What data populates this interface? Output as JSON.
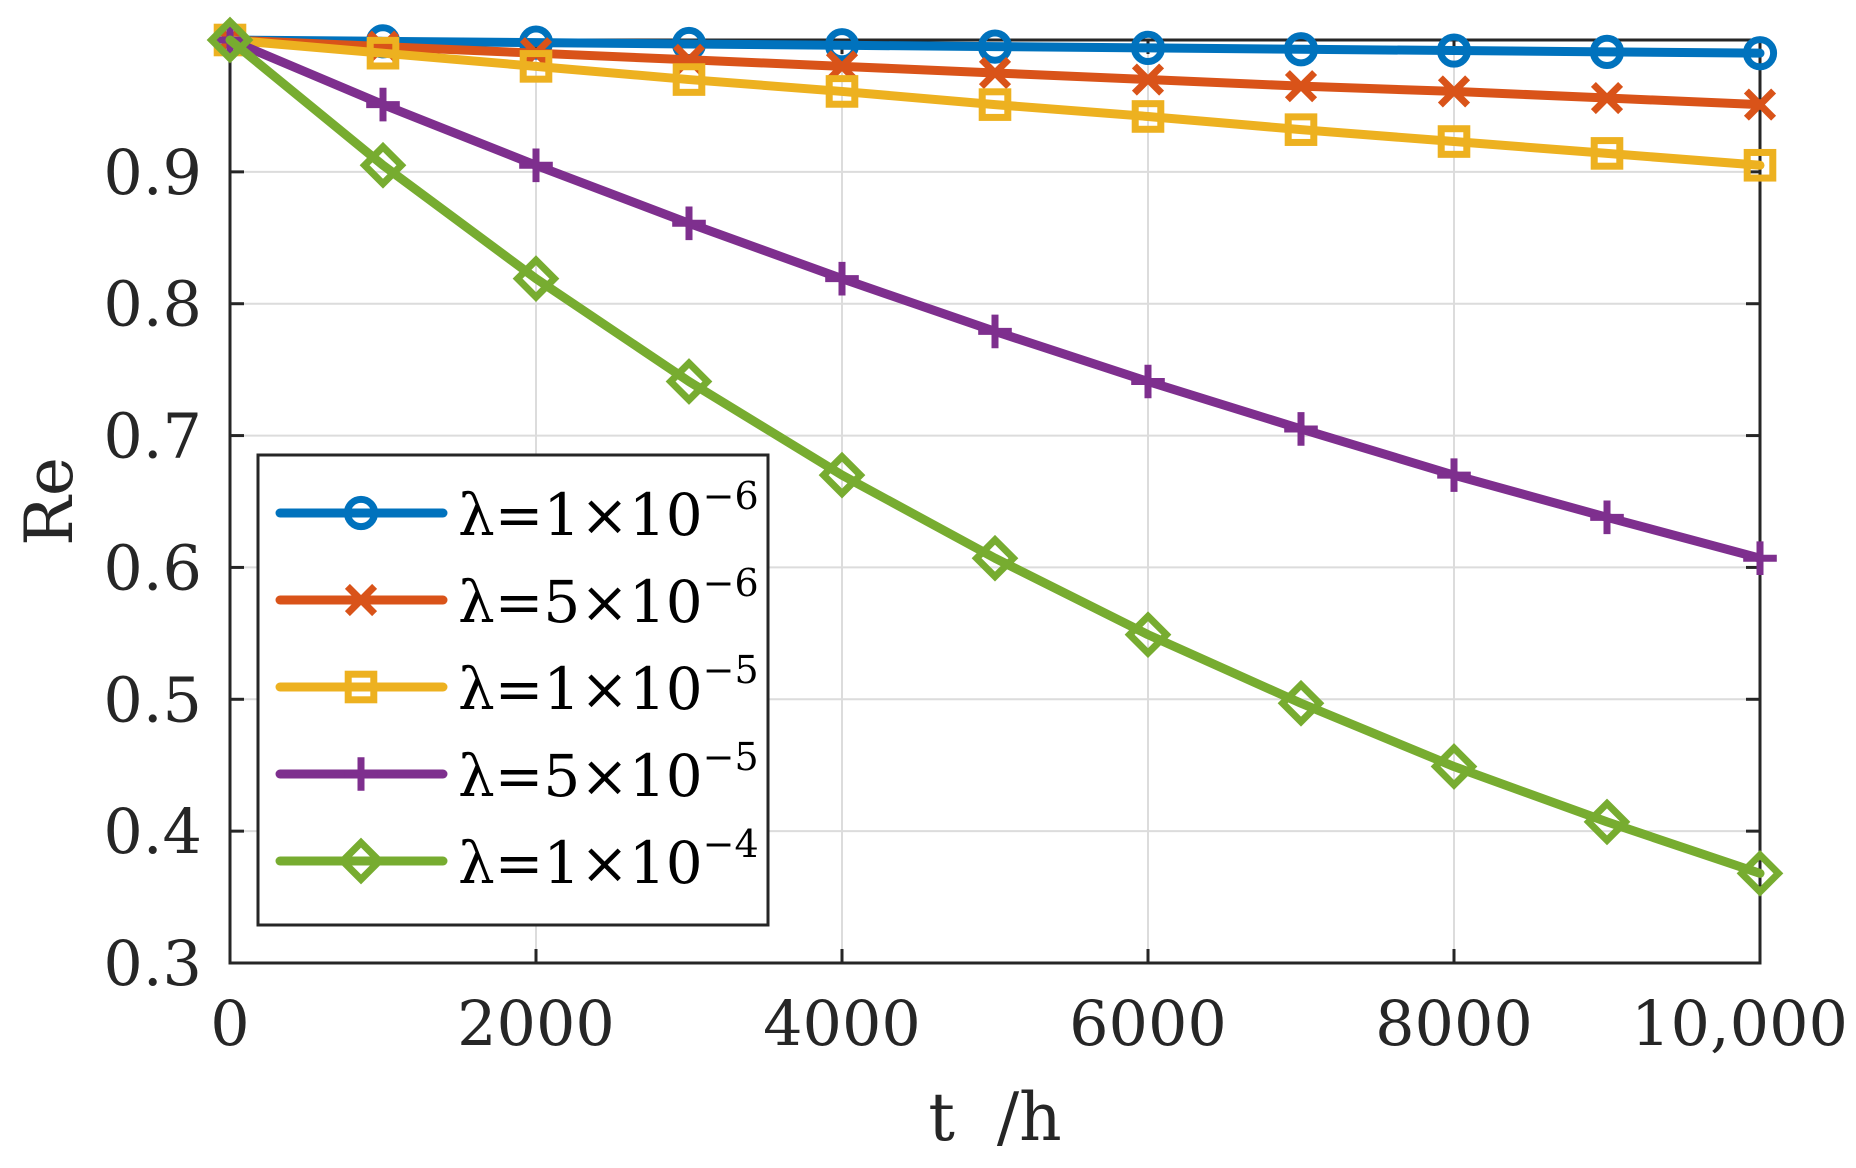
{
  "chart_data": {
    "type": "line",
    "title": "",
    "xlabel": "t  /h",
    "ylabel": "Re",
    "xlim": [
      0,
      10000
    ],
    "ylim": [
      0.3,
      1.0
    ],
    "grid": true,
    "legend_position": "bottom-left",
    "x_ticks": [
      0,
      2000,
      4000,
      6000,
      8000,
      10000
    ],
    "x_tick_labels": [
      "0",
      "2000",
      "4000",
      "6000",
      "8000",
      "10,000"
    ],
    "y_ticks": [
      0.3,
      0.4,
      0.5,
      0.6,
      0.7,
      0.8,
      0.9
    ],
    "y_tick_labels": [
      "0.3",
      "0.4",
      "0.5",
      "0.6",
      "0.7",
      "0.8",
      "0.9"
    ],
    "x": [
      0,
      1000,
      2000,
      3000,
      4000,
      5000,
      6000,
      7000,
      8000,
      9000,
      10000
    ],
    "series": [
      {
        "name": "λ=1×10⁻⁶",
        "label_base": "λ=1×10",
        "label_exp": "−6",
        "color": "#0072BD",
        "marker": "circle",
        "values": [
          1.0,
          0.999,
          0.998,
          0.997,
          0.996,
          0.995,
          0.994,
          0.993,
          0.992,
          0.991,
          0.99
        ]
      },
      {
        "name": "λ=5×10⁻⁶",
        "label_base": "λ=5×10",
        "label_exp": "−6",
        "color": "#D95319",
        "marker": "x",
        "values": [
          1.0,
          0.995,
          0.99,
          0.985,
          0.98,
          0.975,
          0.97,
          0.965,
          0.961,
          0.956,
          0.951
        ]
      },
      {
        "name": "λ=1×10⁻⁵",
        "label_base": "λ=1×10",
        "label_exp": "−5",
        "color": "#EDB120",
        "marker": "square",
        "values": [
          1.0,
          0.99,
          0.98,
          0.97,
          0.961,
          0.951,
          0.942,
          0.932,
          0.923,
          0.914,
          0.905
        ]
      },
      {
        "name": "λ=5×10⁻⁵",
        "label_base": "λ=5×10",
        "label_exp": "−5",
        "color": "#7E2F8E",
        "marker": "plus",
        "values": [
          1.0,
          0.951,
          0.905,
          0.861,
          0.819,
          0.779,
          0.741,
          0.705,
          0.67,
          0.638,
          0.607
        ]
      },
      {
        "name": "λ=1×10⁻⁴",
        "label_base": "λ=1×10",
        "label_exp": "−4",
        "color": "#77AC30",
        "marker": "diamond",
        "values": [
          1.0,
          0.905,
          0.819,
          0.741,
          0.67,
          0.607,
          0.549,
          0.497,
          0.449,
          0.407,
          0.368
        ]
      }
    ]
  }
}
